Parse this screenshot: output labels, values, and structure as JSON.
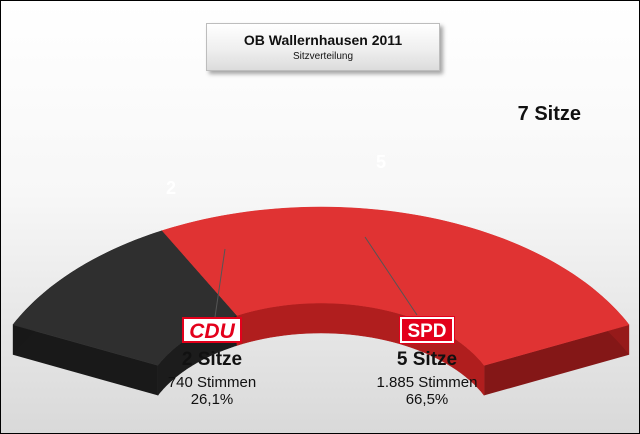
{
  "title": "OB Wallernhausen 2011",
  "subtitle": "Sitzverteilung",
  "total_label": "7 Sitze",
  "chart_data": {
    "type": "pie",
    "variant": "3d-semicircle-arc",
    "title": "OB Wallernhausen 2011",
    "subtitle": "Sitzverteilung",
    "total_seats": 7,
    "series": [
      {
        "name": "CDU",
        "value": 2,
        "label": "2",
        "color": "#2f2f2f",
        "side_color": "#1c1c1c"
      },
      {
        "name": "SPD",
        "value": 5,
        "label": "5",
        "color": "#e03333",
        "side_color": "#b01e1e"
      }
    ]
  },
  "parties": [
    {
      "logo": "CDU",
      "seats_label": "2 Sitze",
      "votes_label": "740 Stimmen",
      "pct_label": "26,1%"
    },
    {
      "logo": "SPD",
      "seats_label": "5 Sitze",
      "votes_label": "1.885 Stimmen",
      "pct_label": "66,5%"
    }
  ]
}
